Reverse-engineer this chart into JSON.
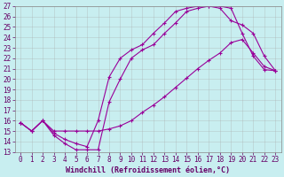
{
  "xlabel": "Windchill (Refroidissement éolien,°C)",
  "background_color": "#c8eef0",
  "line_color": "#990099",
  "xlim": [
    -0.5,
    23.5
  ],
  "ylim": [
    13,
    27
  ],
  "xtick_labels": [
    "0",
    "1",
    "2",
    "3",
    "4",
    "5",
    "6",
    "7",
    "8",
    "9",
    "10",
    "11",
    "12",
    "13",
    "14",
    "15",
    "16",
    "17",
    "18",
    "19",
    "20",
    "21",
    "22",
    "23"
  ],
  "xtick_vals": [
    0,
    1,
    2,
    3,
    4,
    5,
    6,
    7,
    8,
    9,
    10,
    11,
    12,
    13,
    14,
    15,
    16,
    17,
    18,
    19,
    20,
    21,
    22,
    23
  ],
  "ytick_vals": [
    13,
    14,
    15,
    16,
    17,
    18,
    19,
    20,
    21,
    22,
    23,
    24,
    25,
    26,
    27
  ],
  "curve1_x": [
    0,
    1,
    2,
    3,
    4,
    5,
    6,
    7,
    8,
    9,
    10,
    11,
    12,
    13,
    14,
    15,
    16,
    17,
    18,
    19,
    20,
    21,
    22,
    23
  ],
  "curve1_y": [
    15.8,
    15.0,
    16.0,
    14.6,
    13.8,
    13.2,
    13.2,
    13.2,
    17.8,
    20.0,
    22.0,
    22.8,
    23.3,
    24.4,
    25.4,
    26.5,
    26.8,
    27.0,
    27.0,
    26.8,
    24.4,
    22.2,
    20.9,
    20.8
  ],
  "curve2_x": [
    0,
    1,
    2,
    3,
    4,
    5,
    6,
    7,
    8,
    9,
    10,
    11,
    12,
    13,
    14,
    15,
    16,
    17,
    18,
    19,
    20,
    21,
    22,
    23
  ],
  "curve2_y": [
    15.8,
    15.0,
    16.0,
    14.8,
    14.2,
    13.8,
    13.5,
    16.0,
    20.2,
    22.0,
    22.8,
    23.3,
    24.4,
    25.4,
    26.5,
    26.8,
    27.0,
    27.0,
    26.8,
    25.6,
    25.2,
    24.4,
    22.2,
    20.8
  ],
  "curve3_x": [
    0,
    1,
    2,
    3,
    4,
    5,
    6,
    7,
    8,
    9,
    10,
    11,
    12,
    13,
    14,
    15,
    16,
    17,
    18,
    19,
    20,
    21,
    22,
    23
  ],
  "curve3_y": [
    15.8,
    15.0,
    16.0,
    15.0,
    15.0,
    15.0,
    15.0,
    15.0,
    15.2,
    15.5,
    16.0,
    16.8,
    17.5,
    18.3,
    19.2,
    20.1,
    21.0,
    21.8,
    22.5,
    23.5,
    23.8,
    22.5,
    21.2,
    20.8
  ],
  "grid_color": "#aaaaaa",
  "marker": "+",
  "markersize": 3,
  "linewidth": 0.8,
  "tick_fontsize": 5.5,
  "xlabel_fontsize": 6,
  "tick_color": "#660066",
  "spine_color": "#888888"
}
